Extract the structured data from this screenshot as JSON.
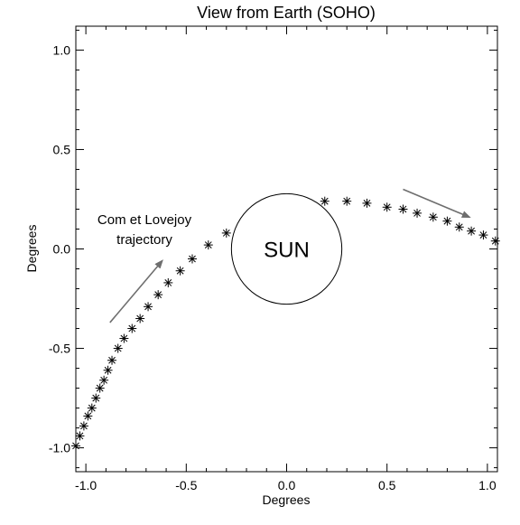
{
  "chart_data": {
    "type": "scatter",
    "title": "View from Earth (SOHO)",
    "xlabel": "Degrees",
    "ylabel": "Degrees",
    "xlim": [
      -1.05,
      1.05
    ],
    "ylim": [
      -1.12,
      1.12
    ],
    "x_ticks": [
      -1.0,
      -0.5,
      0.0,
      0.5,
      1.0
    ],
    "x_tick_labels": [
      "-1.0",
      "-0.5",
      "0.0",
      "0.5",
      "1.0"
    ],
    "y_ticks": [
      -1.0,
      -0.5,
      0.0,
      0.5,
      1.0
    ],
    "y_tick_labels": [
      "-1.0",
      "-0.5",
      "0.0",
      "0.5",
      "1.0"
    ],
    "grid": false,
    "marker": "asterisk",
    "series": [
      {
        "points": [
          [
            -1.05,
            -0.99
          ],
          [
            -1.03,
            -0.94
          ],
          [
            -1.01,
            -0.89
          ],
          [
            -0.99,
            -0.84
          ],
          [
            -0.97,
            -0.8
          ],
          [
            -0.95,
            -0.75
          ],
          [
            -0.93,
            -0.7
          ],
          [
            -0.91,
            -0.66
          ],
          [
            -0.89,
            -0.61
          ],
          [
            -0.87,
            -0.56
          ],
          [
            -0.84,
            -0.5
          ],
          [
            -0.81,
            -0.45
          ],
          [
            -0.77,
            -0.4
          ],
          [
            -0.73,
            -0.35
          ],
          [
            -0.69,
            -0.29
          ],
          [
            -0.64,
            -0.23
          ],
          [
            -0.59,
            -0.17
          ],
          [
            -0.53,
            -0.11
          ],
          [
            -0.47,
            -0.05
          ],
          [
            -0.39,
            0.02
          ],
          [
            -0.3,
            0.08
          ],
          [
            0.19,
            0.24
          ],
          [
            0.3,
            0.24
          ],
          [
            0.4,
            0.23
          ],
          [
            0.5,
            0.21
          ],
          [
            0.58,
            0.2
          ],
          [
            0.65,
            0.18
          ],
          [
            0.73,
            0.16
          ],
          [
            0.8,
            0.14
          ],
          [
            0.86,
            0.11
          ],
          [
            0.92,
            0.09
          ],
          [
            0.98,
            0.07
          ],
          [
            1.04,
            0.04
          ]
        ]
      }
    ],
    "sun": {
      "center": [
        0.0,
        0.0
      ],
      "radius": 0.275,
      "label": "SUN"
    },
    "annotation": {
      "lines": [
        "Com et Lovejoy",
        "trajectory"
      ]
    },
    "arrows": [
      {
        "from": [
          -0.88,
          -0.37
        ],
        "to": [
          -0.62,
          -0.06
        ]
      },
      {
        "from": [
          0.58,
          0.3
        ],
        "to": [
          0.91,
          0.16
        ]
      }
    ],
    "colors": {
      "marker": "#000000",
      "arrow": "#6e6e6e",
      "axes": "#000000",
      "background": "#ffffff"
    }
  }
}
